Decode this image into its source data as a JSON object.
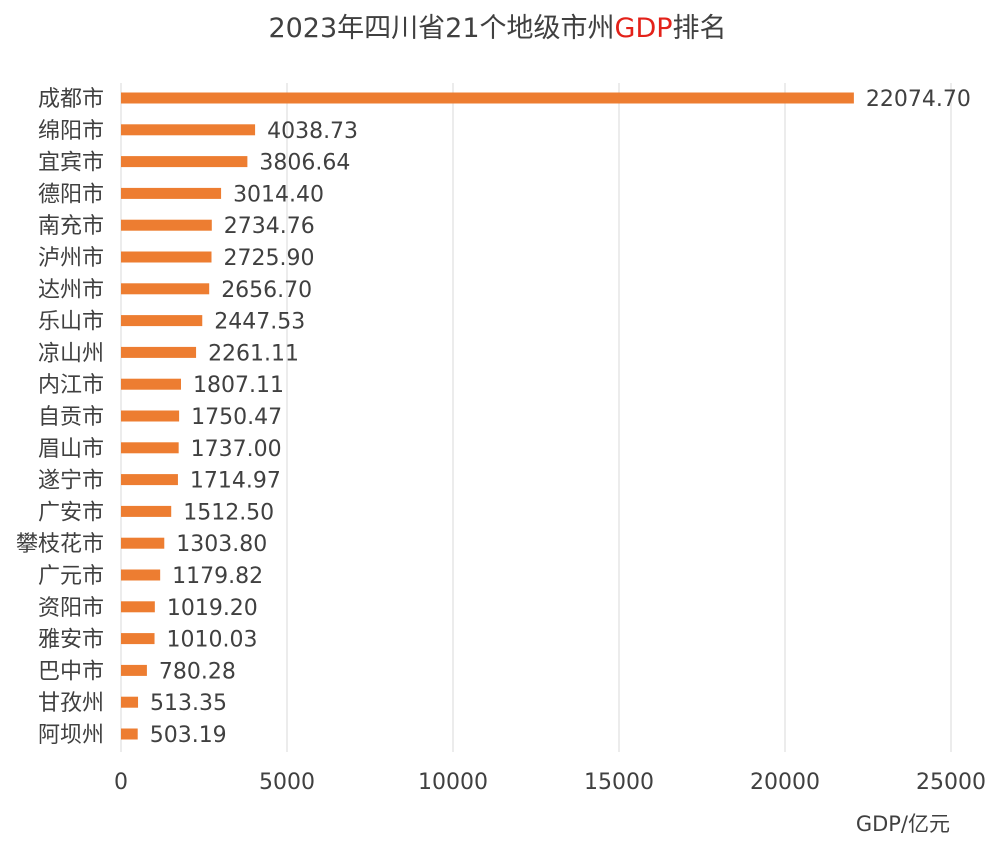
{
  "chart_data": {
    "type": "bar",
    "orientation": "horizontal",
    "title_parts": [
      "2023年四川省21个地级市州",
      "GDP",
      "排名"
    ],
    "title_highlight_color": "#e32119",
    "bar_color": "#ed7d31",
    "grid": true,
    "xlabel": "GDP/亿元",
    "ylabel": "",
    "xlim": [
      0,
      25000
    ],
    "xticks": [
      0,
      5000,
      10000,
      15000,
      20000,
      25000
    ],
    "categories": [
      "成都市",
      "绵阳市",
      "宜宾市",
      "德阳市",
      "南充市",
      "泸州市",
      "达州市",
      "乐山市",
      "凉山州",
      "内江市",
      "自贡市",
      "眉山市",
      "遂宁市",
      "广安市",
      "攀枝花市",
      "广元市",
      "资阳市",
      "雅安市",
      "巴中市",
      "甘孜州",
      "阿坝州"
    ],
    "values": [
      22074.7,
      4038.73,
      3806.64,
      3014.4,
      2734.76,
      2725.9,
      2656.7,
      2447.53,
      2261.11,
      1807.11,
      1750.47,
      1737.0,
      1714.97,
      1512.5,
      1303.8,
      1179.82,
      1019.2,
      1010.03,
      780.28,
      513.35,
      503.19
    ],
    "value_labels": [
      "22074.70",
      "4038.73",
      "3806.64",
      "3014.40",
      "2734.76",
      "2725.90",
      "2656.70",
      "2447.53",
      "2261.11",
      "1807.11",
      "1750.47",
      "1737.00",
      "1714.97",
      "1512.50",
      "1303.80",
      "1179.82",
      "1019.20",
      "1010.03",
      "780.28",
      "513.35",
      "503.19"
    ]
  }
}
